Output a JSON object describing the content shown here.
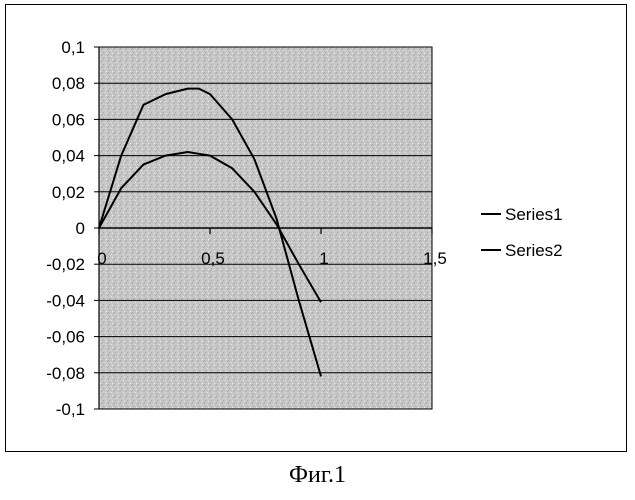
{
  "chart_data": {
    "type": "line",
    "title": "",
    "xlabel": "",
    "ylabel": "",
    "xlim": [
      0,
      1.5
    ],
    "ylim": [
      -0.1,
      0.1
    ],
    "x_ticks": [
      "0",
      "0,5",
      "1",
      "1,5"
    ],
    "y_ticks": [
      "0,1",
      "0,08",
      "0,06",
      "0,04",
      "0,02",
      "0",
      "-0,02",
      "-0,04",
      "-0,06",
      "-0,08",
      "-0,1"
    ],
    "grid": true,
    "legend_position": "right",
    "series": [
      {
        "name": "Series1",
        "x": [
          0,
          0.1,
          0.2,
          0.3,
          0.4,
          0.45,
          0.5,
          0.6,
          0.7,
          0.8,
          0.9,
          1.0
        ],
        "y": [
          0,
          0.022,
          0.035,
          0.04,
          0.042,
          0.041,
          0.04,
          0.033,
          0.02,
          0.002,
          -0.02,
          -0.041
        ]
      },
      {
        "name": "Series2",
        "x": [
          0,
          0.1,
          0.2,
          0.3,
          0.4,
          0.45,
          0.5,
          0.6,
          0.7,
          0.8,
          0.9,
          1.0
        ],
        "y": [
          0,
          0.04,
          0.068,
          0.074,
          0.077,
          0.077,
          0.074,
          0.06,
          0.038,
          0.005,
          -0.04,
          -0.082
        ]
      }
    ],
    "colors": {
      "line": "#000000",
      "plot_bg": "#c6c6c6",
      "grid": "#000000"
    }
  },
  "caption": "Фиг.1"
}
